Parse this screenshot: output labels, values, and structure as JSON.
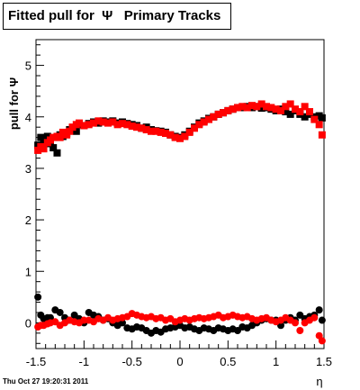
{
  "title": "Fitted pull for  Ψ   Primary Tracks",
  "footer": "Thu Oct 27 19:20:31 2011",
  "chart_data": {
    "type": "scatter",
    "xlabel": "η",
    "ylabel": "pull for Ψ",
    "xlim": [
      -1.5,
      1.5
    ],
    "ylim": [
      -0.5,
      5.5
    ],
    "xticks": [
      -1.5,
      -1,
      -0.5,
      0,
      0.5,
      1,
      1.5
    ],
    "xtick_labels": [
      "-1.5",
      "-1",
      "-0.5",
      "0",
      "0.5",
      "1",
      "1.5"
    ],
    "yticks": [
      0,
      1,
      2,
      3,
      4,
      5
    ],
    "ytick_labels": [
      "0",
      "1",
      "2",
      "3",
      "4",
      "5"
    ],
    "grid": false,
    "series": [
      {
        "color": "#000000",
        "marker": "square",
        "x": [
          -1.48,
          -1.45,
          -1.42,
          -1.38,
          -1.35,
          -1.32,
          -1.28,
          -1.25,
          -1.22,
          -1.18,
          -1.15,
          -1.12,
          -1.08,
          -1.05,
          -1.0,
          -0.95,
          -0.9,
          -0.85,
          -0.8,
          -0.75,
          -0.7,
          -0.65,
          -0.6,
          -0.55,
          -0.5,
          -0.45,
          -0.4,
          -0.35,
          -0.3,
          -0.25,
          -0.2,
          -0.15,
          -0.1,
          -0.05,
          0.0,
          0.05,
          0.1,
          0.15,
          0.2,
          0.25,
          0.3,
          0.35,
          0.4,
          0.45,
          0.5,
          0.55,
          0.6,
          0.65,
          0.7,
          0.75,
          0.8,
          0.85,
          0.9,
          0.95,
          1.0,
          1.05,
          1.1,
          1.15,
          1.2,
          1.25,
          1.3,
          1.35,
          1.4,
          1.45,
          1.48
        ],
        "y": [
          3.45,
          3.6,
          3.55,
          3.62,
          3.48,
          3.4,
          3.3,
          3.65,
          3.62,
          3.68,
          3.75,
          3.78,
          3.72,
          3.85,
          3.83,
          3.87,
          3.9,
          3.88,
          3.92,
          3.9,
          3.92,
          3.88,
          3.9,
          3.87,
          3.85,
          3.83,
          3.78,
          3.8,
          3.75,
          3.73,
          3.72,
          3.7,
          3.65,
          3.62,
          3.6,
          3.65,
          3.72,
          3.8,
          3.88,
          3.92,
          3.97,
          4.0,
          4.05,
          4.08,
          4.12,
          4.15,
          4.18,
          4.18,
          4.2,
          4.18,
          4.2,
          4.17,
          4.18,
          4.15,
          4.12,
          4.15,
          4.1,
          4.05,
          4.12,
          4.05,
          4.0,
          4.05,
          4.0,
          4.02,
          3.98
        ]
      },
      {
        "color": "#ff0000",
        "marker": "square",
        "x": [
          -1.48,
          -1.45,
          -1.42,
          -1.38,
          -1.35,
          -1.32,
          -1.28,
          -1.25,
          -1.22,
          -1.18,
          -1.15,
          -1.12,
          -1.08,
          -1.05,
          -1.0,
          -0.95,
          -0.9,
          -0.85,
          -0.8,
          -0.75,
          -0.7,
          -0.65,
          -0.6,
          -0.55,
          -0.5,
          -0.45,
          -0.4,
          -0.35,
          -0.3,
          -0.25,
          -0.2,
          -0.15,
          -0.1,
          -0.05,
          0.0,
          0.05,
          0.1,
          0.15,
          0.2,
          0.25,
          0.3,
          0.35,
          0.4,
          0.45,
          0.5,
          0.55,
          0.6,
          0.65,
          0.7,
          0.75,
          0.8,
          0.85,
          0.9,
          0.95,
          1.0,
          1.05,
          1.1,
          1.15,
          1.2,
          1.25,
          1.3,
          1.35,
          1.4,
          1.45,
          1.48
        ],
        "y": [
          3.35,
          3.42,
          3.38,
          3.5,
          3.55,
          3.6,
          3.62,
          3.6,
          3.7,
          3.65,
          3.72,
          3.8,
          3.85,
          3.88,
          3.83,
          3.85,
          3.88,
          3.92,
          3.9,
          3.88,
          3.9,
          3.85,
          3.87,
          3.85,
          3.82,
          3.8,
          3.78,
          3.75,
          3.72,
          3.72,
          3.7,
          3.68,
          3.65,
          3.6,
          3.58,
          3.62,
          3.7,
          3.78,
          3.85,
          3.9,
          3.95,
          4.0,
          4.05,
          4.08,
          4.12,
          4.15,
          4.18,
          4.2,
          4.18,
          4.22,
          4.2,
          4.25,
          4.2,
          4.18,
          4.15,
          4.12,
          4.2,
          4.25,
          4.15,
          4.1,
          4.2,
          4.1,
          3.95,
          3.85,
          3.65
        ]
      },
      {
        "color": "#000000",
        "marker": "circle",
        "x": [
          -1.48,
          -1.45,
          -1.42,
          -1.38,
          -1.35,
          -1.3,
          -1.25,
          -1.2,
          -1.15,
          -1.1,
          -1.05,
          -1.0,
          -0.95,
          -0.9,
          -0.85,
          -0.8,
          -0.75,
          -0.7,
          -0.65,
          -0.6,
          -0.55,
          -0.5,
          -0.45,
          -0.4,
          -0.35,
          -0.3,
          -0.25,
          -0.2,
          -0.15,
          -0.1,
          -0.05,
          0.0,
          0.05,
          0.1,
          0.15,
          0.2,
          0.25,
          0.3,
          0.35,
          0.4,
          0.45,
          0.5,
          0.55,
          0.6,
          0.65,
          0.7,
          0.75,
          0.8,
          0.85,
          0.9,
          0.95,
          1.0,
          1.05,
          1.1,
          1.15,
          1.2,
          1.25,
          1.3,
          1.35,
          1.4,
          1.45,
          1.48
        ],
        "y": [
          0.5,
          0.15,
          0.08,
          0.1,
          0.1,
          0.25,
          0.2,
          0.1,
          0.05,
          0.15,
          0.08,
          0.0,
          0.2,
          0.15,
          0.12,
          0.05,
          0.08,
          0.0,
          -0.05,
          0.0,
          -0.1,
          -0.12,
          -0.08,
          -0.1,
          -0.15,
          -0.2,
          -0.15,
          -0.18,
          -0.12,
          -0.1,
          -0.08,
          -0.05,
          -0.1,
          -0.08,
          -0.12,
          -0.15,
          -0.1,
          -0.12,
          -0.15,
          -0.1,
          -0.12,
          -0.15,
          -0.12,
          -0.15,
          -0.08,
          -0.1,
          -0.05,
          0.0,
          0.05,
          0.08,
          0.05,
          0.05,
          -0.05,
          0.05,
          0.1,
          0.05,
          0.15,
          0.08,
          0.12,
          0.15,
          0.25,
          0.05
        ]
      },
      {
        "color": "#ff0000",
        "marker": "circle",
        "x": [
          -1.48,
          -1.45,
          -1.42,
          -1.38,
          -1.35,
          -1.3,
          -1.25,
          -1.2,
          -1.15,
          -1.1,
          -1.05,
          -1.0,
          -0.95,
          -0.9,
          -0.85,
          -0.8,
          -0.75,
          -0.7,
          -0.65,
          -0.6,
          -0.55,
          -0.5,
          -0.45,
          -0.4,
          -0.35,
          -0.3,
          -0.25,
          -0.2,
          -0.15,
          -0.1,
          -0.05,
          0.0,
          0.05,
          0.1,
          0.15,
          0.2,
          0.25,
          0.3,
          0.35,
          0.4,
          0.45,
          0.5,
          0.55,
          0.6,
          0.65,
          0.7,
          0.75,
          0.8,
          0.85,
          0.9,
          0.95,
          1.0,
          1.05,
          1.1,
          1.15,
          1.2,
          1.25,
          1.3,
          1.35,
          1.4,
          1.45,
          1.48
        ],
        "y": [
          -0.08,
          -0.05,
          -0.05,
          -0.02,
          0.0,
          0.02,
          -0.05,
          0.0,
          0.05,
          0.02,
          0.0,
          0.05,
          0.05,
          0.02,
          0.08,
          0.05,
          0.1,
          0.05,
          0.08,
          0.1,
          0.12,
          0.18,
          0.15,
          0.12,
          0.1,
          0.12,
          0.08,
          0.1,
          0.05,
          0.08,
          0.02,
          0.05,
          0.08,
          0.05,
          0.08,
          0.1,
          0.08,
          0.1,
          0.12,
          0.15,
          0.1,
          0.12,
          0.15,
          0.12,
          0.1,
          0.12,
          0.08,
          0.05,
          0.08,
          0.1,
          0.05,
          0.02,
          0.05,
          0.1,
          0.05,
          0.0,
          -0.15,
          0.0,
          0.05,
          0.1,
          -0.25,
          -0.35
        ]
      }
    ]
  }
}
